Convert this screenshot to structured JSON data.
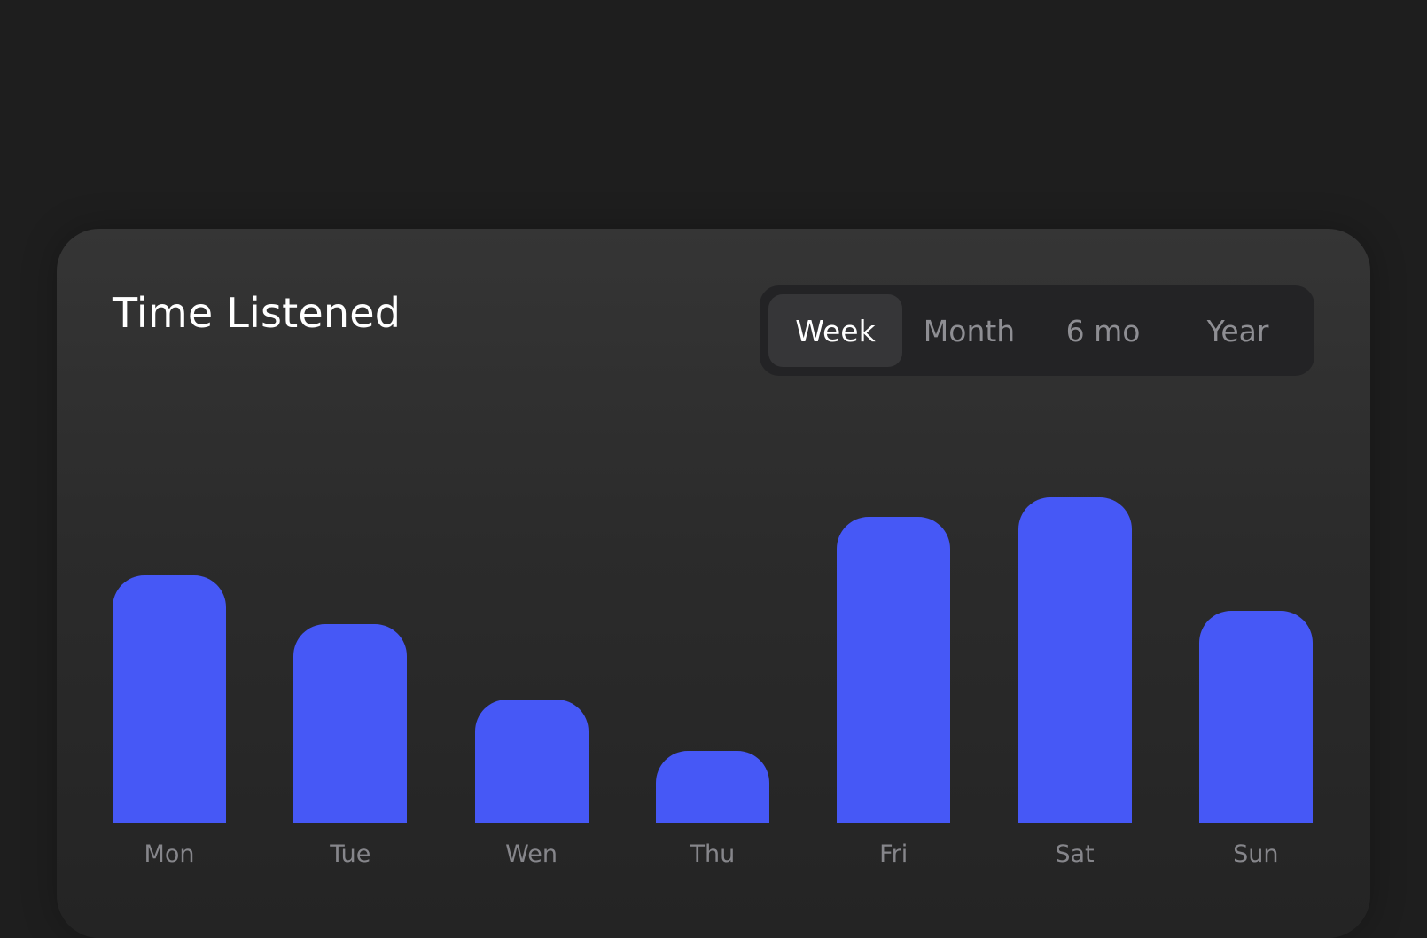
{
  "card": {
    "title": "Time Listened"
  },
  "range_selector": {
    "options": [
      {
        "label": "Week",
        "selected": true
      },
      {
        "label": "Month",
        "selected": false
      },
      {
        "label": "6 mo",
        "selected": false
      },
      {
        "label": "Year",
        "selected": false
      }
    ]
  },
  "colors": {
    "bar": "#4658f6",
    "background": "#1e1e1e",
    "card": "#2b2b2b",
    "label": "#86868b",
    "selected_tab": "#363638"
  },
  "chart_data": {
    "type": "bar",
    "title": "Time Listened",
    "categories": [
      "Mon",
      "Tue",
      "Wen",
      "Thu",
      "Fri",
      "Sat",
      "Sun"
    ],
    "values": [
      76,
      61,
      38,
      22,
      94,
      100,
      65
    ],
    "ylim": [
      0,
      100
    ],
    "grid": false,
    "xlabel": "",
    "ylabel": ""
  }
}
